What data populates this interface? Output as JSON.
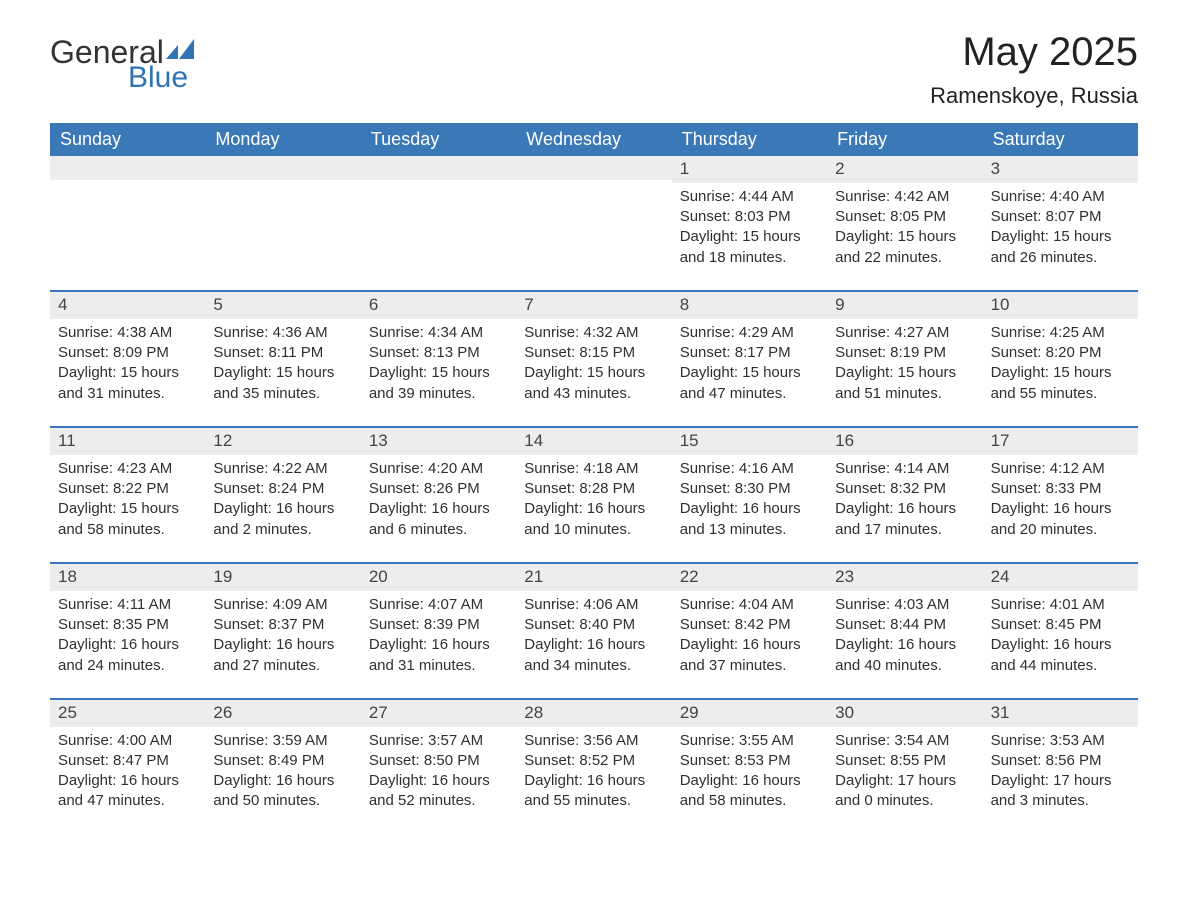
{
  "logo": {
    "text1": "General",
    "text2": "Blue",
    "accent": "#2f73b5"
  },
  "title": "May 2025",
  "location": "Ramenskoye, Russia",
  "colors": {
    "header_bg": "#3b78b8",
    "header_text": "#ffffff",
    "daynum_bg": "#ededed",
    "border": "#3b78b8",
    "body_text": "#303030"
  },
  "weekdays": [
    "Sunday",
    "Monday",
    "Tuesday",
    "Wednesday",
    "Thursday",
    "Friday",
    "Saturday"
  ],
  "weeks": [
    [
      {
        "num": "",
        "lines": []
      },
      {
        "num": "",
        "lines": []
      },
      {
        "num": "",
        "lines": []
      },
      {
        "num": "",
        "lines": []
      },
      {
        "num": "1",
        "lines": [
          "Sunrise: 4:44 AM",
          "Sunset: 8:03 PM",
          "Daylight: 15 hours and 18 minutes."
        ]
      },
      {
        "num": "2",
        "lines": [
          "Sunrise: 4:42 AM",
          "Sunset: 8:05 PM",
          "Daylight: 15 hours and 22 minutes."
        ]
      },
      {
        "num": "3",
        "lines": [
          "Sunrise: 4:40 AM",
          "Sunset: 8:07 PM",
          "Daylight: 15 hours and 26 minutes."
        ]
      }
    ],
    [
      {
        "num": "4",
        "lines": [
          "Sunrise: 4:38 AM",
          "Sunset: 8:09 PM",
          "Daylight: 15 hours and 31 minutes."
        ]
      },
      {
        "num": "5",
        "lines": [
          "Sunrise: 4:36 AM",
          "Sunset: 8:11 PM",
          "Daylight: 15 hours and 35 minutes."
        ]
      },
      {
        "num": "6",
        "lines": [
          "Sunrise: 4:34 AM",
          "Sunset: 8:13 PM",
          "Daylight: 15 hours and 39 minutes."
        ]
      },
      {
        "num": "7",
        "lines": [
          "Sunrise: 4:32 AM",
          "Sunset: 8:15 PM",
          "Daylight: 15 hours and 43 minutes."
        ]
      },
      {
        "num": "8",
        "lines": [
          "Sunrise: 4:29 AM",
          "Sunset: 8:17 PM",
          "Daylight: 15 hours and 47 minutes."
        ]
      },
      {
        "num": "9",
        "lines": [
          "Sunrise: 4:27 AM",
          "Sunset: 8:19 PM",
          "Daylight: 15 hours and 51 minutes."
        ]
      },
      {
        "num": "10",
        "lines": [
          "Sunrise: 4:25 AM",
          "Sunset: 8:20 PM",
          "Daylight: 15 hours and 55 minutes."
        ]
      }
    ],
    [
      {
        "num": "11",
        "lines": [
          "Sunrise: 4:23 AM",
          "Sunset: 8:22 PM",
          "Daylight: 15 hours and 58 minutes."
        ]
      },
      {
        "num": "12",
        "lines": [
          "Sunrise: 4:22 AM",
          "Sunset: 8:24 PM",
          "Daylight: 16 hours and 2 minutes."
        ]
      },
      {
        "num": "13",
        "lines": [
          "Sunrise: 4:20 AM",
          "Sunset: 8:26 PM",
          "Daylight: 16 hours and 6 minutes."
        ]
      },
      {
        "num": "14",
        "lines": [
          "Sunrise: 4:18 AM",
          "Sunset: 8:28 PM",
          "Daylight: 16 hours and 10 minutes."
        ]
      },
      {
        "num": "15",
        "lines": [
          "Sunrise: 4:16 AM",
          "Sunset: 8:30 PM",
          "Daylight: 16 hours and 13 minutes."
        ]
      },
      {
        "num": "16",
        "lines": [
          "Sunrise: 4:14 AM",
          "Sunset: 8:32 PM",
          "Daylight: 16 hours and 17 minutes."
        ]
      },
      {
        "num": "17",
        "lines": [
          "Sunrise: 4:12 AM",
          "Sunset: 8:33 PM",
          "Daylight: 16 hours and 20 minutes."
        ]
      }
    ],
    [
      {
        "num": "18",
        "lines": [
          "Sunrise: 4:11 AM",
          "Sunset: 8:35 PM",
          "Daylight: 16 hours and 24 minutes."
        ]
      },
      {
        "num": "19",
        "lines": [
          "Sunrise: 4:09 AM",
          "Sunset: 8:37 PM",
          "Daylight: 16 hours and 27 minutes."
        ]
      },
      {
        "num": "20",
        "lines": [
          "Sunrise: 4:07 AM",
          "Sunset: 8:39 PM",
          "Daylight: 16 hours and 31 minutes."
        ]
      },
      {
        "num": "21",
        "lines": [
          "Sunrise: 4:06 AM",
          "Sunset: 8:40 PM",
          "Daylight: 16 hours and 34 minutes."
        ]
      },
      {
        "num": "22",
        "lines": [
          "Sunrise: 4:04 AM",
          "Sunset: 8:42 PM",
          "Daylight: 16 hours and 37 minutes."
        ]
      },
      {
        "num": "23",
        "lines": [
          "Sunrise: 4:03 AM",
          "Sunset: 8:44 PM",
          "Daylight: 16 hours and 40 minutes."
        ]
      },
      {
        "num": "24",
        "lines": [
          "Sunrise: 4:01 AM",
          "Sunset: 8:45 PM",
          "Daylight: 16 hours and 44 minutes."
        ]
      }
    ],
    [
      {
        "num": "25",
        "lines": [
          "Sunrise: 4:00 AM",
          "Sunset: 8:47 PM",
          "Daylight: 16 hours and 47 minutes."
        ]
      },
      {
        "num": "26",
        "lines": [
          "Sunrise: 3:59 AM",
          "Sunset: 8:49 PM",
          "Daylight: 16 hours and 50 minutes."
        ]
      },
      {
        "num": "27",
        "lines": [
          "Sunrise: 3:57 AM",
          "Sunset: 8:50 PM",
          "Daylight: 16 hours and 52 minutes."
        ]
      },
      {
        "num": "28",
        "lines": [
          "Sunrise: 3:56 AM",
          "Sunset: 8:52 PM",
          "Daylight: 16 hours and 55 minutes."
        ]
      },
      {
        "num": "29",
        "lines": [
          "Sunrise: 3:55 AM",
          "Sunset: 8:53 PM",
          "Daylight: 16 hours and 58 minutes."
        ]
      },
      {
        "num": "30",
        "lines": [
          "Sunrise: 3:54 AM",
          "Sunset: 8:55 PM",
          "Daylight: 17 hours and 0 minutes."
        ]
      },
      {
        "num": "31",
        "lines": [
          "Sunrise: 3:53 AM",
          "Sunset: 8:56 PM",
          "Daylight: 17 hours and 3 minutes."
        ]
      }
    ]
  ]
}
